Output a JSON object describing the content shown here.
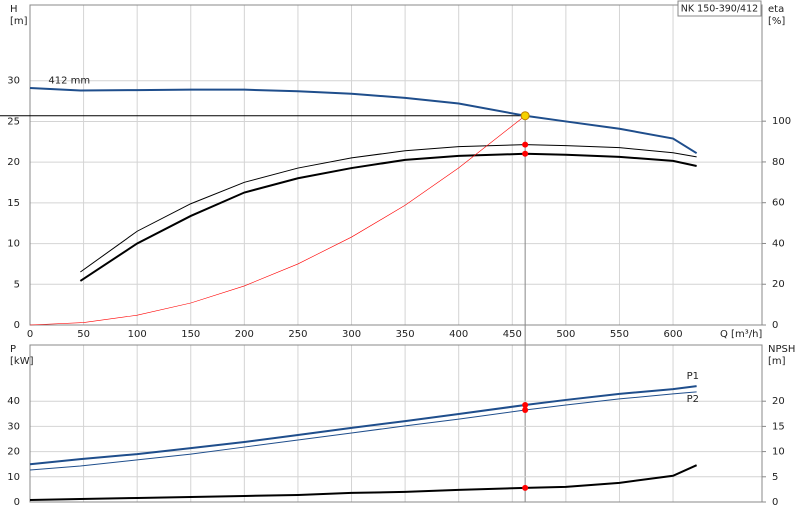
{
  "chart_data": [
    {
      "type": "line",
      "title": "NK 150-390/412",
      "xlabel": "Q [m³/h]",
      "ylabel": "H",
      "yunit": "[m]",
      "y2label": "eta",
      "y2unit": "[%]",
      "xlim": [
        0,
        683
      ],
      "xticks": [
        0,
        50,
        100,
        150,
        200,
        250,
        300,
        350,
        400,
        450,
        500,
        550,
        600
      ],
      "ylim": [
        0,
        39.3
      ],
      "yticks": [
        0,
        5,
        10,
        15,
        20,
        25,
        30
      ],
      "y2lim": [
        0,
        157
      ],
      "y2ticks": [
        0,
        20,
        40,
        60,
        80,
        100
      ],
      "grid": true,
      "duty_point": {
        "x": 462,
        "y": 25.7,
        "color": "#f5d200"
      },
      "series": [
        {
          "name": "412 mm",
          "label_at": "start",
          "color": "#1f4e8c",
          "width": 2,
          "x": [
            0,
            47,
            100,
            150,
            200,
            250,
            300,
            350,
            400,
            462,
            500,
            550,
            600,
            622
          ],
          "values": [
            29.1,
            28.8,
            28.85,
            28.9,
            28.9,
            28.7,
            28.4,
            27.9,
            27.2,
            25.7,
            25,
            24.1,
            22.9,
            21.1
          ]
        },
        {
          "axis": "y2",
          "color": "#000000",
          "width": 1,
          "x": [
            47,
            100,
            150,
            200,
            250,
            300,
            350,
            400,
            462,
            500,
            550,
            600,
            622
          ],
          "values": [
            26,
            46,
            59.5,
            70,
            77,
            82,
            85.5,
            87.5,
            88.5,
            88,
            87,
            84.5,
            82.5
          ]
        },
        {
          "axis": "y2",
          "color": "#000000",
          "width": 2,
          "x": [
            47,
            100,
            150,
            200,
            250,
            300,
            350,
            400,
            462,
            500,
            550,
            600,
            622
          ],
          "values": [
            21.6,
            40,
            53.5,
            65,
            72,
            77,
            81,
            83,
            84,
            83.5,
            82.5,
            80.5,
            78
          ]
        },
        {
          "color": "#ff0000",
          "width": 0.6,
          "x": [
            0,
            50,
            100,
            150,
            200,
            250,
            300,
            350,
            400,
            462
          ],
          "values": [
            0,
            0.3,
            1.2,
            2.7,
            4.8,
            7.5,
            10.8,
            14.7,
            19.3,
            25.7
          ]
        },
        {
          "mode": "markers",
          "axis": "y2",
          "color": "#ff0000",
          "x": [
            462,
            462
          ],
          "values": [
            88.5,
            84
          ]
        }
      ]
    },
    {
      "type": "line",
      "ylabel": "P",
      "yunit": "[kW]",
      "y2label": "NPSH",
      "y2unit": "[m]",
      "xlim": [
        0,
        683
      ],
      "xticks": [
        0,
        50,
        100,
        150,
        200,
        250,
        300,
        350,
        400,
        450,
        500,
        550,
        600
      ],
      "ylim": [
        0,
        62.3
      ],
      "yticks": [
        0,
        10,
        20,
        30,
        40
      ],
      "y2lim": [
        0,
        31.15
      ],
      "y2ticks": [
        0,
        5,
        10,
        15,
        20
      ],
      "grid": true,
      "series": [
        {
          "name": "P1",
          "label_at": "end",
          "color": "#1f4e8c",
          "width": 2,
          "x": [
            0,
            47,
            100,
            150,
            200,
            250,
            300,
            350,
            400,
            462,
            500,
            550,
            600,
            622
          ],
          "values": [
            15,
            17,
            19,
            21.4,
            23.8,
            26.6,
            29.4,
            32.1,
            34.9,
            38.5,
            40.5,
            42.9,
            44.8,
            46
          ]
        },
        {
          "name": "P2",
          "label_at": "end",
          "color": "#1f4e8c",
          "width": 1,
          "x": [
            0,
            47,
            100,
            150,
            200,
            250,
            300,
            350,
            400,
            462,
            500,
            550,
            600,
            622
          ],
          "values": [
            12.7,
            14.3,
            16.7,
            19,
            21.8,
            24.6,
            27.4,
            30.2,
            32.9,
            36.5,
            38.5,
            40.9,
            42.9,
            43.7
          ]
        },
        {
          "axis": "y2",
          "color": "#000000",
          "width": 2,
          "x": [
            0,
            47,
            100,
            150,
            200,
            250,
            300,
            350,
            400,
            462,
            500,
            550,
            600,
            622
          ],
          "values": [
            0.4,
            0.6,
            0.8,
            1,
            1.2,
            1.4,
            1.8,
            2,
            2.4,
            2.8,
            3,
            3.8,
            5.2,
            7.3
          ]
        },
        {
          "mode": "markers",
          "color": "#ff0000",
          "x": [
            462,
            462
          ],
          "values": [
            38.5,
            36.5
          ]
        },
        {
          "mode": "markers",
          "axis": "y2",
          "color": "#ff0000",
          "x": [
            462
          ],
          "values": [
            2.8
          ]
        }
      ]
    }
  ]
}
